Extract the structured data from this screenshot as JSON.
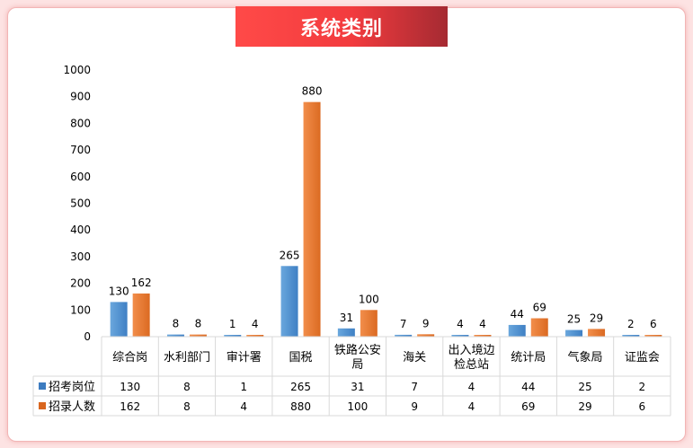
{
  "title": "系统类别",
  "colors": {
    "series1": "#5b9bd5",
    "series1_dark": "#3d7cc0",
    "series2": "#ed7d31",
    "series2_dark": "#d9661f",
    "axis": "#d9d9d9",
    "text": "#000000"
  },
  "chart_data": {
    "type": "bar",
    "title": "系统类别",
    "categories": [
      [
        "综合岗"
      ],
      [
        "水利部门"
      ],
      [
        "审计署"
      ],
      [
        "国税"
      ],
      [
        "铁路公安",
        "局"
      ],
      [
        "海关"
      ],
      [
        "出入境边",
        "检总站"
      ],
      [
        "统计局"
      ],
      [
        "气象局"
      ],
      [
        "证监会"
      ]
    ],
    "series": [
      {
        "name": "招考岗位",
        "values": [
          130,
          8,
          1,
          265,
          31,
          7,
          4,
          44,
          25,
          2
        ]
      },
      {
        "name": "招录人数",
        "values": [
          162,
          8,
          4,
          880,
          100,
          9,
          4,
          69,
          29,
          6
        ]
      }
    ],
    "ylim": [
      0,
      1000
    ],
    "yticks": [
      0,
      100,
      200,
      300,
      400,
      500,
      600,
      700,
      800,
      900,
      1000
    ],
    "grid": false,
    "legend": "data-table",
    "data_table": true
  }
}
